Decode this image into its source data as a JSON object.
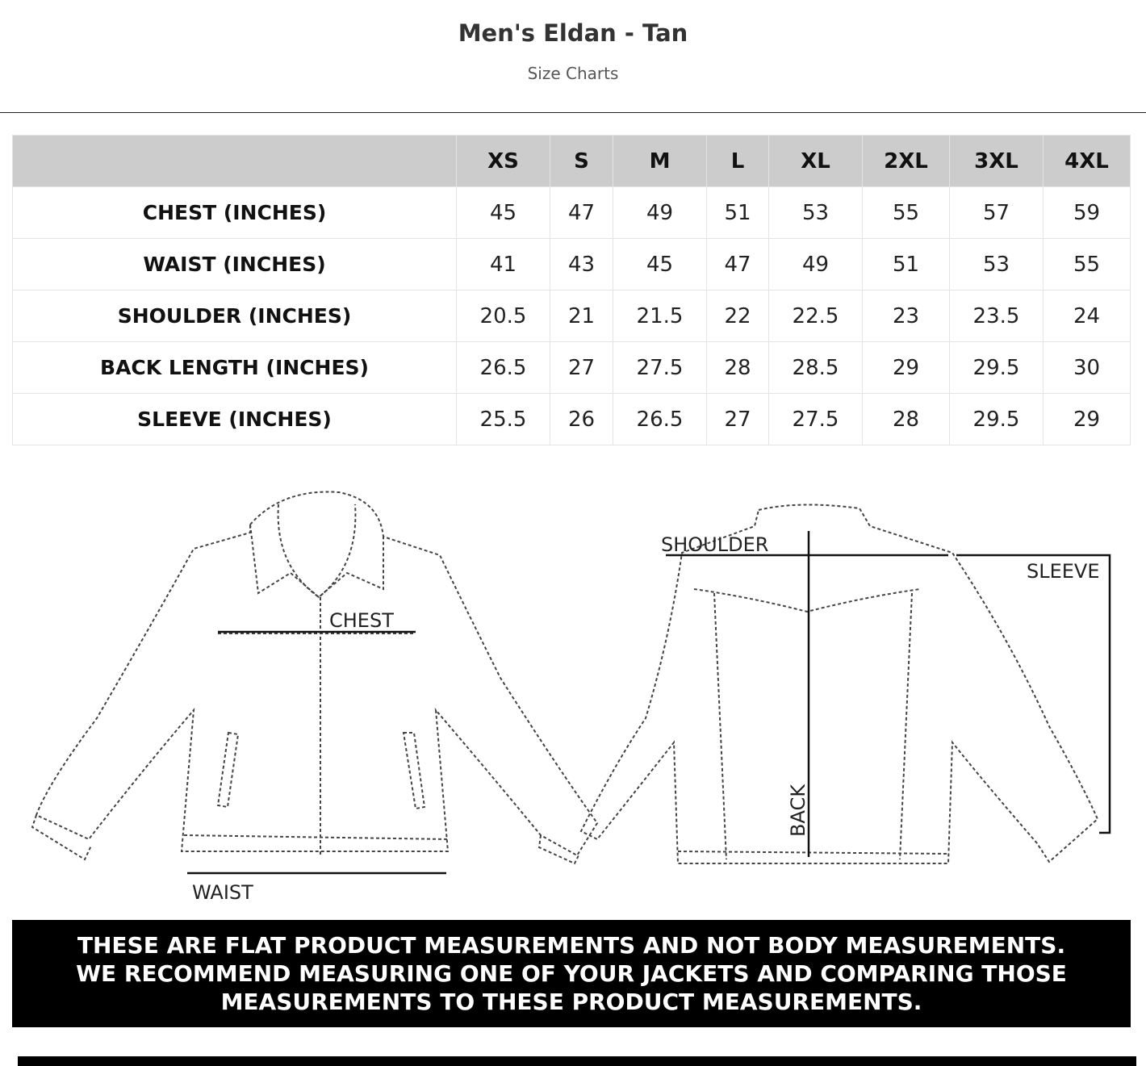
{
  "header": {
    "title": "Men's Eldan - Tan",
    "subtitle": "Size Charts"
  },
  "table": {
    "sizes": [
      "XS",
      "S",
      "M",
      "L",
      "XL",
      "2XL",
      "3XL",
      "4XL"
    ],
    "rows": [
      {
        "label": "CHEST (INCHES)",
        "values": [
          "45",
          "47",
          "49",
          "51",
          "53",
          "55",
          "57",
          "59"
        ]
      },
      {
        "label": "WAIST (INCHES)",
        "values": [
          "41",
          "43",
          "45",
          "47",
          "49",
          "51",
          "53",
          "55"
        ]
      },
      {
        "label": "SHOULDER (INCHES)",
        "values": [
          "20.5",
          "21",
          "21.5",
          "22",
          "22.5",
          "23",
          "23.5",
          "24"
        ]
      },
      {
        "label": "BACK LENGTH (INCHES)",
        "values": [
          "26.5",
          "27",
          "27.5",
          "28",
          "28.5",
          "29",
          "29.5",
          "30"
        ]
      },
      {
        "label": "SLEEVE (INCHES)",
        "values": [
          "25.5",
          "26",
          "26.5",
          "27",
          "27.5",
          "28",
          "29.5",
          "29"
        ]
      }
    ]
  },
  "diagram": {
    "chest": "CHEST",
    "waist": "WAIST",
    "shoulder": "SHOULDER",
    "sleeve": "SLEEVE",
    "back": "BACK"
  },
  "banner": {
    "text": "THESE ARE FLAT PRODUCT MEASUREMENTS AND NOT BODY MEASUREMENTS. WE RECOMMEND MEASURING ONE OF YOUR JACKETS AND COMPARING THOSE MEASUREMENTS TO THESE PRODUCT MEASUREMENTS."
  },
  "colors": {
    "header_bg": "#cccccc",
    "banner_bg": "#000000"
  }
}
